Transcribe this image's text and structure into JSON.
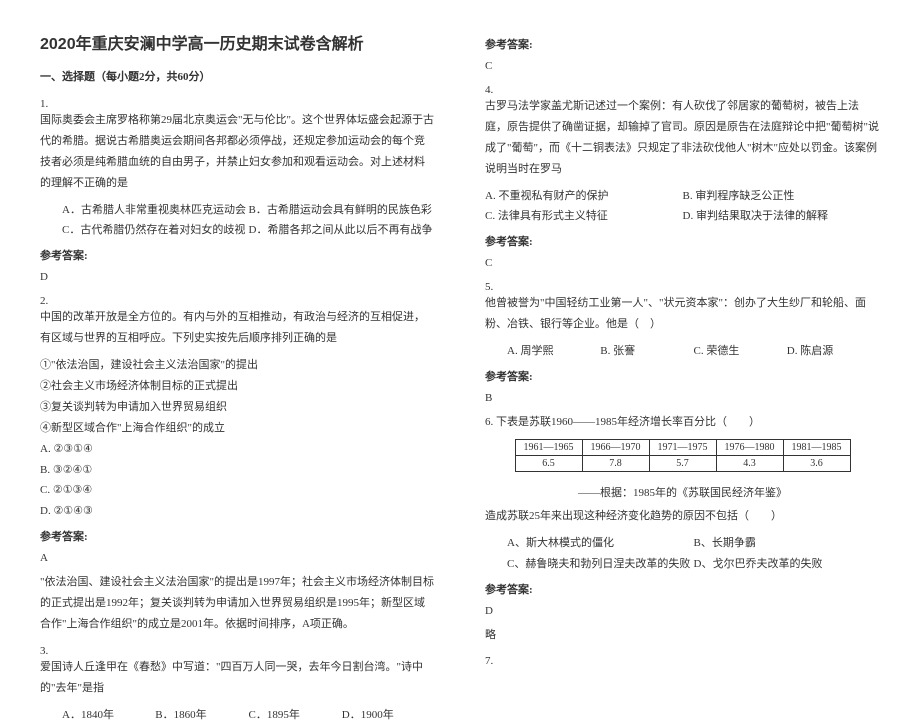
{
  "title": "2020年重庆安澜中学高一历史期末试卷含解析",
  "section1": "一、选择题（每小题2分，共60分）",
  "q1": {
    "num": "1.",
    "text": "国际奥委会主席罗格称第29届北京奥运会\"无与伦比\"。这个世界体坛盛会起源于古代的希腊。据说古希腊奥运会期间各邦都必须停战，还规定参加运动会的每个竞技者必须是纯希腊血统的自由男子，并禁止妇女参加和观看运动会。对上述材料的理解不正确的是",
    "A": "A．古希腊人非常重视奥林匹克运动会",
    "B": "B．古希腊运动会具有鲜明的民族色彩",
    "C": "C．古代希腊仍然存在着对妇女的歧视",
    "D": "D．希腊各邦之间从此以后不再有战争",
    "ansLabel": "参考答案:",
    "ans": "D"
  },
  "q2": {
    "num": "2.",
    "text": "中国的改革开放是全方位的。有内与外的互相推动，有政治与经济的互相促进，有区域与世界的互相呼应。下列史实按先后顺序排列正确的是",
    "o1": "①\"依法治国，建设社会主义法治国家\"的提出",
    "o2": "②社会主义市场经济体制目标的正式提出",
    "o3": "③复关谈判转为申请加入世界贸易组织",
    "o4": "④新型区域合作\"上海合作组织\"的成立",
    "A": "A. ②③①④",
    "B": "B. ③②④①",
    "C": "C. ②①③④",
    "D": "D. ②①④③",
    "ansLabel": "参考答案:",
    "ans": "A",
    "expl": "\"依法治国、建设社会主义法治国家\"的提出是1997年；社会主义市场经济体制目标的正式提出是1992年；复关谈判转为申请加入世界贸易组织是1995年；新型区域合作\"上海合作组织\"的成立是2001年。依据时间排序，A项正确。"
  },
  "q3": {
    "num": "3.",
    "text": "爱国诗人丘逢甲在《春愁》中写道：\"四百万人同一哭，去年今日割台湾。\"诗中的\"去年\"是指",
    "A": "A．1840年",
    "B": "B．1860年",
    "C": "C．1895年",
    "D": "D．1900年",
    "ansLabel": "参考答案:",
    "ans": "C"
  },
  "q4": {
    "num": "4.",
    "text": "古罗马法学家盖尤斯记述过一个案例：有人砍伐了邻居家的葡萄树，被告上法庭，原告提供了确凿证据，却输掉了官司。原因是原告在法庭辩论中把\"葡萄树\"说成了\"葡萄\"，而《十二铜表法》只规定了非法砍伐他人\"树木\"应处以罚金。该案例说明当时在罗马",
    "A": "A. 不重视私有财产的保护",
    "B": "B. 审判程序缺乏公正性",
    "C": "C. 法律具有形式主义特征",
    "D": "D. 审判结果取决于法律的解释",
    "ansLabel": "参考答案:",
    "ans": "C"
  },
  "q5": {
    "num": "5.",
    "text": "他曾被誉为\"中国轻纺工业第一人\"、\"状元资本家\"：创办了大生纱厂和轮船、面粉、冶铁、银行等企业。他是（　）",
    "A": "A. 周学熙",
    "B": "B. 张謇",
    "C": "C. 荣德生",
    "D": "D. 陈启源",
    "ansLabel": "参考答案:",
    "ans": "B"
  },
  "q6": {
    "title": "6. 下表是苏联1960——1985年经济增长率百分比（　　）",
    "table": {
      "headers": [
        "1961—1965",
        "1966—1970",
        "1971—1975",
        "1976—1980",
        "1981—1985"
      ],
      "values": [
        "6.5",
        "7.8",
        "5.7",
        "4.3",
        "3.6"
      ]
    },
    "src": "——根据：1985年的《苏联国民经济年鉴》",
    "text": "造成苏联25年来出现这种经济变化趋势的原因不包括（　　）",
    "A": "A、斯大林模式的僵化",
    "B": "B、长期争霸",
    "C": "C、赫鲁晓夫和勃列日涅夫改革的失败",
    "D": "D、戈尔巴乔夫改革的失败",
    "ansLabel": "参考答案:",
    "ans": "D",
    "expl": "略"
  },
  "q7": {
    "num": "7."
  }
}
